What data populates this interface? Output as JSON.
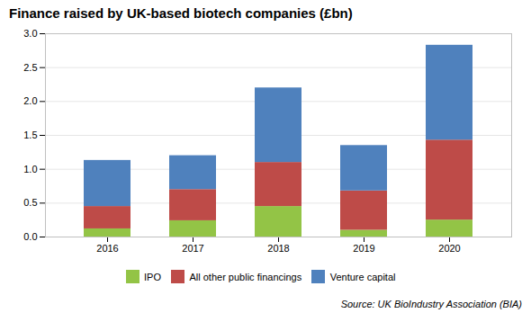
{
  "chart_data": {
    "type": "bar",
    "stacked": true,
    "title": "Finance raised by UK-based biotech companies (£bn)",
    "categories": [
      "2016",
      "2017",
      "2018",
      "2019",
      "2020"
    ],
    "series": [
      {
        "name": "IPO",
        "color": "#93c446",
        "values": [
          0.12,
          0.24,
          0.45,
          0.1,
          0.25
        ]
      },
      {
        "name": "All other public financings",
        "color": "#be4b48",
        "values": [
          0.33,
          0.46,
          0.65,
          0.58,
          1.18
        ]
      },
      {
        "name": "Venture capital",
        "color": "#4f81bd",
        "values": [
          0.68,
          0.5,
          1.1,
          0.67,
          1.4
        ]
      }
    ],
    "ylim": [
      0,
      3.0
    ],
    "yticks": [
      {
        "value": 0.0,
        "label": "0.0"
      },
      0.5,
      {
        "value": 1.0,
        "label": "1.0"
      },
      1.5,
      {
        "value": 2.0,
        "label": "2.0"
      },
      2.5,
      {
        "value": 3.0,
        "label": "3.0"
      }
    ],
    "grid": true,
    "legend": "bottom",
    "source": "Source: UK BioIndustry Association (BIA)"
  }
}
